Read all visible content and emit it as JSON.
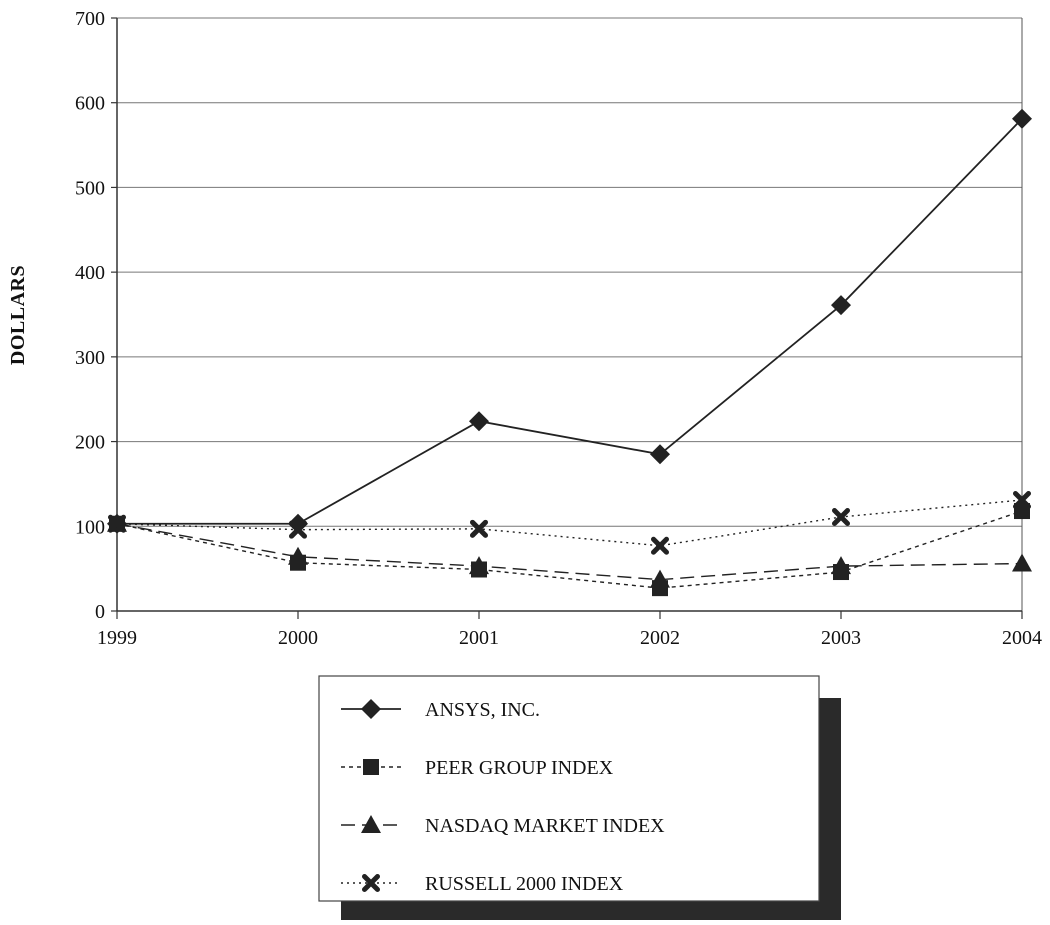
{
  "chart_data": {
    "type": "line",
    "title": "",
    "xlabel": "",
    "ylabel": "DOLLARS",
    "categories": [
      "1999",
      "2000",
      "2001",
      "2002",
      "2003",
      "2004"
    ],
    "ylim": [
      0,
      700
    ],
    "yticks": [
      0,
      100,
      200,
      300,
      400,
      500,
      600,
      700
    ],
    "grid": "horizontal",
    "legend_position": "bottom-center",
    "series": [
      {
        "name": "ANSYS, INC.",
        "values": [
          103,
          103,
          224,
          185,
          361,
          581
        ],
        "marker": "diamond",
        "line_style": "solid",
        "color": "#222222"
      },
      {
        "name": "PEER GROUP INDEX",
        "values": [
          103,
          57,
          49,
          27,
          46,
          118
        ],
        "marker": "square",
        "line_style": "short-dash",
        "color": "#222222"
      },
      {
        "name": "NASDAQ MARKET INDEX",
        "values": [
          103,
          64,
          53,
          37,
          53,
          56
        ],
        "marker": "triangle",
        "line_style": "long-dash",
        "color": "#222222"
      },
      {
        "name": "RUSSELL 2000 INDEX",
        "values": [
          103,
          96,
          97,
          77,
          111,
          131
        ],
        "marker": "x",
        "line_style": "dotted",
        "color": "#222222"
      }
    ]
  }
}
